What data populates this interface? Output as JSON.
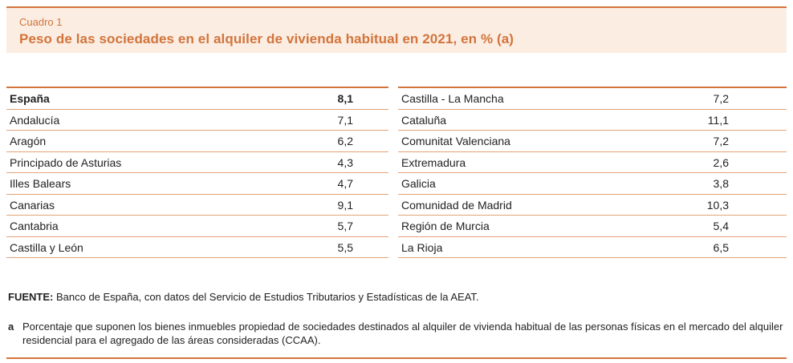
{
  "header": {
    "kicker": "Cuadro 1",
    "title": "Peso de las sociedades en el alquiler de vivienda habitual en 2021, en % (a)"
  },
  "table": {
    "left": [
      {
        "label": "España",
        "value": "8,1",
        "bold": true
      },
      {
        "label": "Andalucía",
        "value": "7,1"
      },
      {
        "label": "Aragón",
        "value": "6,2"
      },
      {
        "label": "Principado de Asturias",
        "value": "4,3"
      },
      {
        "label": "Illes Balears",
        "value": "4,7"
      },
      {
        "label": "Canarias",
        "value": "9,1"
      },
      {
        "label": "Cantabria",
        "value": "5,7"
      },
      {
        "label": "Castilla y León",
        "value": "5,5"
      }
    ],
    "right": [
      {
        "label": "Castilla - La Mancha",
        "value": "7,2"
      },
      {
        "label": "Cataluña",
        "value": "11,1"
      },
      {
        "label": "Comunitat Valenciana",
        "value": "7,2"
      },
      {
        "label": "Extremadura",
        "value": "2,6"
      },
      {
        "label": "Galicia",
        "value": "3,8"
      },
      {
        "label": "Comunidad de Madrid",
        "value": "10,3"
      },
      {
        "label": "Región de Murcia",
        "value": "5,4"
      },
      {
        "label": "La Rioja",
        "value": "6,5"
      }
    ]
  },
  "footer": {
    "source_label": "FUENTE:",
    "source_text": "Banco de España, con datos del Servicio de Estudios Tributarios y Estadísticas de la AEAT.",
    "note_mark": "a",
    "note_text": "Porcentaje que suponen los bienes inmuebles propiedad de sociedades destinados al alquiler de vivienda habitual de las personas físicas en el mercado del alquiler residencial para el agregado de las áreas consideradas (CCAA)."
  },
  "colors": {
    "accent": "#d2743c",
    "header_bg": "#fbede2",
    "row_rule": "#e2a377"
  }
}
